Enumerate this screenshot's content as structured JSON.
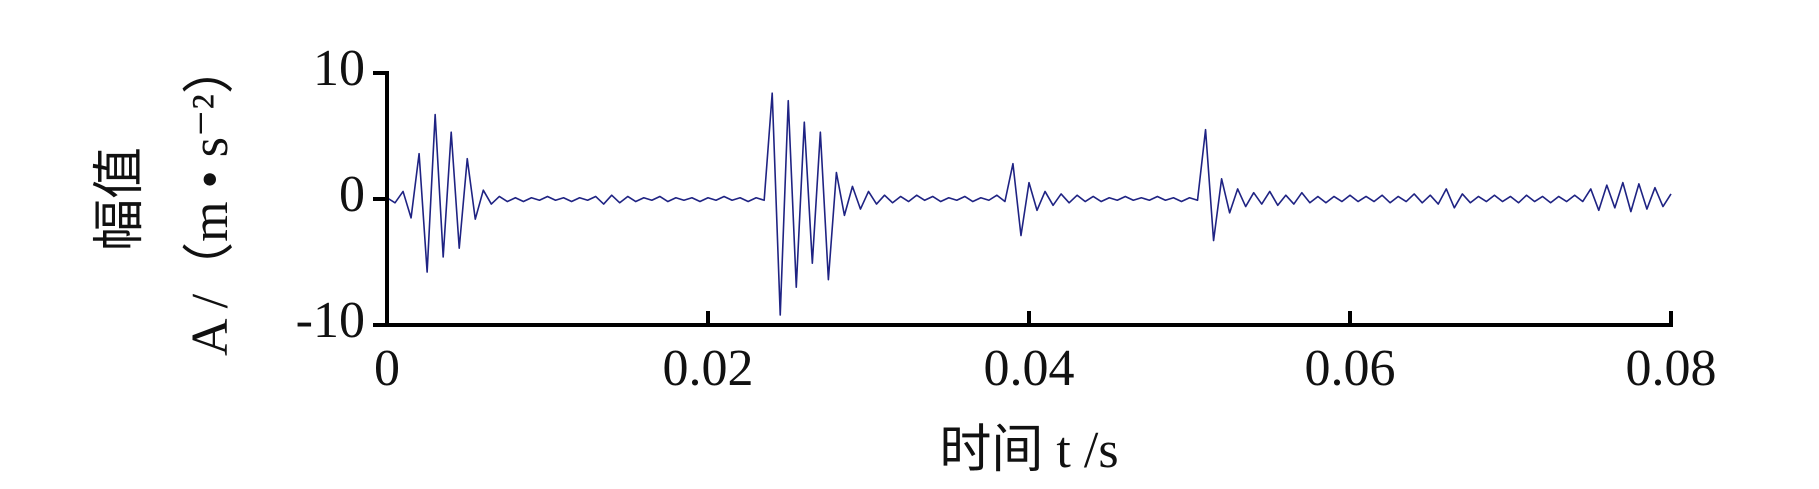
{
  "chart_data": {
    "type": "line",
    "xlabel": "时间 t /s",
    "ylabel": [
      "幅值",
      "A /（m • s⁻²）"
    ],
    "xlim": [
      0,
      0.08
    ],
    "xticks": [
      0,
      0.02,
      0.04,
      0.06,
      0.08
    ],
    "ylim": [
      -10,
      10
    ],
    "yticks": [
      -10,
      0,
      10
    ],
    "color": "#1f2383",
    "x": [
      0,
      0.0005,
      0.001,
      0.0015,
      0.002,
      0.0025,
      0.003,
      0.0035,
      0.004,
      0.0045,
      0.005,
      0.0055,
      0.006,
      0.0065,
      0.007,
      0.0075,
      0.008,
      0.0085,
      0.009,
      0.0095,
      0.01,
      0.0105,
      0.011,
      0.0115,
      0.012,
      0.0125,
      0.013,
      0.0135,
      0.014,
      0.0145,
      0.015,
      0.0155,
      0.016,
      0.0165,
      0.017,
      0.0175,
      0.018,
      0.0185,
      0.019,
      0.0195,
      0.02,
      0.0205,
      0.021,
      0.0215,
      0.022,
      0.0225,
      0.023,
      0.0235,
      0.024,
      0.0245,
      0.025,
      0.0255,
      0.026,
      0.0265,
      0.027,
      0.0275,
      0.028,
      0.0285,
      0.029,
      0.0295,
      0.03,
      0.0305,
      0.031,
      0.0315,
      0.032,
      0.0325,
      0.033,
      0.0335,
      0.034,
      0.0345,
      0.035,
      0.0355,
      0.036,
      0.0365,
      0.037,
      0.0375,
      0.038,
      0.0385,
      0.039,
      0.0395,
      0.04,
      0.0405,
      0.041,
      0.0415,
      0.042,
      0.0425,
      0.043,
      0.0435,
      0.044,
      0.0445,
      0.045,
      0.0455,
      0.046,
      0.0465,
      0.047,
      0.0475,
      0.048,
      0.0485,
      0.049,
      0.0495,
      0.05,
      0.0505,
      0.051,
      0.0515,
      0.052,
      0.0525,
      0.053,
      0.0535,
      0.054,
      0.0545,
      0.055,
      0.0555,
      0.056,
      0.0565,
      0.057,
      0.0575,
      0.058,
      0.0585,
      0.059,
      0.0595,
      0.06,
      0.0605,
      0.061,
      0.0615,
      0.062,
      0.0625,
      0.063,
      0.0635,
      0.064,
      0.0645,
      0.065,
      0.0655,
      0.066,
      0.0665,
      0.067,
      0.0675,
      0.068,
      0.0685,
      0.069,
      0.0695,
      0.07,
      0.0705,
      0.071,
      0.0715,
      0.072,
      0.0725,
      0.073,
      0.0735,
      0.074,
      0.0745,
      0.075,
      0.0755,
      0.076,
      0.0765,
      0.077,
      0.0775,
      0.078,
      0.0785,
      0.079,
      0.0795,
      0.08
    ],
    "values": [
      0.1,
      -0.3,
      0.6,
      -1.5,
      3.6,
      -5.8,
      6.7,
      -4.6,
      5.3,
      -3.9,
      3.2,
      -1.6,
      0.7,
      -0.4,
      0.2,
      -0.2,
      0.1,
      -0.2,
      0.1,
      -0.1,
      0.2,
      -0.1,
      0.1,
      -0.2,
      0.1,
      -0.1,
      0.2,
      -0.4,
      0.3,
      -0.3,
      0.2,
      -0.2,
      0.1,
      -0.1,
      0.2,
      -0.2,
      0.1,
      -0.1,
      0.1,
      -0.2,
      0.1,
      -0.1,
      0.2,
      -0.1,
      0.1,
      -0.2,
      0.1,
      -0.1,
      8.4,
      -9.2,
      7.8,
      -7.0,
      6.1,
      -5.1,
      5.3,
      -6.4,
      2.1,
      -1.3,
      1.0,
      -0.8,
      0.6,
      -0.4,
      0.3,
      -0.3,
      0.2,
      -0.2,
      0.3,
      -0.1,
      0.2,
      -0.2,
      0.1,
      -0.1,
      0.2,
      -0.2,
      0.1,
      -0.1,
      0.3,
      -0.2,
      2.8,
      -2.9,
      1.3,
      -0.9,
      0.6,
      -0.5,
      0.4,
      -0.3,
      0.3,
      -0.2,
      0.2,
      -0.2,
      0.1,
      -0.1,
      0.2,
      -0.1,
      0.1,
      -0.1,
      0.2,
      -0.1,
      0.1,
      -0.2,
      0.1,
      -0.1,
      5.5,
      -3.3,
      1.6,
      -1.1,
      0.8,
      -0.6,
      0.5,
      -0.4,
      0.6,
      -0.5,
      0.3,
      -0.4,
      0.5,
      -0.3,
      0.2,
      -0.3,
      0.2,
      -0.2,
      0.3,
      -0.2,
      0.2,
      -0.2,
      0.3,
      -0.3,
      0.2,
      -0.2,
      0.4,
      -0.3,
      0.3,
      -0.4,
      0.8,
      -0.7,
      0.4,
      -0.3,
      0.2,
      -0.2,
      0.3,
      -0.2,
      0.2,
      -0.3,
      0.3,
      -0.2,
      0.2,
      -0.3,
      0.2,
      -0.2,
      0.3,
      -0.2,
      0.8,
      -0.9,
      1.1,
      -0.7,
      1.3,
      -1.0,
      1.2,
      -0.8,
      0.9,
      -0.6,
      0.4
    ]
  }
}
